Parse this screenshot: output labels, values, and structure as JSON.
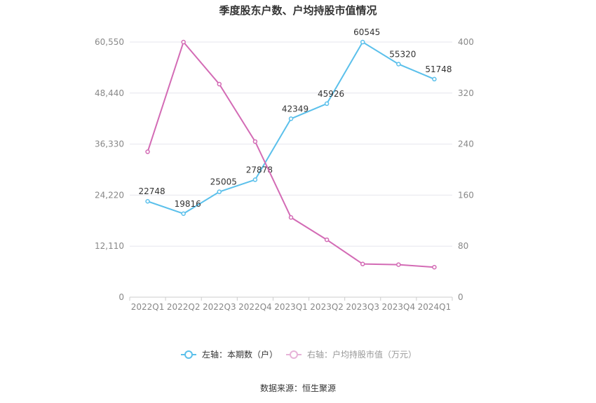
{
  "chart_data": {
    "type": "line",
    "title": "季度股东户数、户均持股市值情况",
    "source": "数据来源：恒生聚源",
    "categories": [
      "2022Q1",
      "2022Q2",
      "2022Q3",
      "2022Q4",
      "2023Q1",
      "2023Q2",
      "2023Q3",
      "2023Q4",
      "2024Q1"
    ],
    "y_left": {
      "ticks": [
        "0",
        "12,110",
        "24,220",
        "36,330",
        "48,440",
        "60,550"
      ],
      "range": [
        0,
        60550
      ]
    },
    "y_right": {
      "ticks": [
        "0",
        "80",
        "160",
        "240",
        "320",
        "400"
      ],
      "range": [
        0,
        400
      ]
    },
    "series": [
      {
        "name": "左轴：本期数（户）",
        "axis": "left",
        "color": "#5bc0eb",
        "values": [
          22748,
          19816,
          25005,
          27878,
          42349,
          45926,
          60545,
          55320,
          51748
        ],
        "labels": [
          "22748",
          "19816",
          "25005",
          "27878",
          "42349",
          "45926",
          "60545",
          "55320",
          "51748"
        ]
      },
      {
        "name": "右轴：户均持股市值（万元）",
        "axis": "right",
        "color": "#d36bb5",
        "values": [
          228,
          400,
          334,
          244,
          125,
          90,
          52,
          51,
          47
        ]
      }
    ],
    "legend_position": "bottom",
    "grid": true
  }
}
